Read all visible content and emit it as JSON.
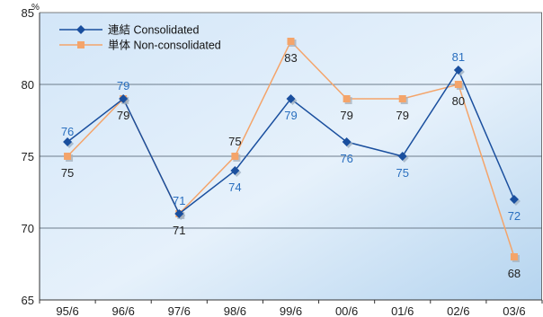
{
  "chart_data": {
    "type": "line",
    "unit": "%",
    "categories": [
      "95/6",
      "96/6",
      "97/6",
      "98/6",
      "99/6",
      "00/6",
      "01/6",
      "02/6",
      "03/6"
    ],
    "ylim": [
      65,
      85
    ],
    "yticks": [
      "65",
      "70",
      "75",
      "80",
      "85"
    ],
    "grid": true,
    "legend_position": "top-left",
    "series": [
      {
        "name": "連結  Consolidated",
        "marker": "diamond",
        "color": "#1a4f9e",
        "label_color": "#2a6fbf",
        "values": [
          76,
          79,
          71,
          74,
          79,
          76,
          75,
          81,
          72
        ],
        "labels": [
          "76",
          "79",
          "71",
          "74",
          "79",
          "76",
          "75",
          "81",
          "72"
        ]
      },
      {
        "name": "単体  Non-consolidated",
        "marker": "square",
        "color": "#f4a46a",
        "label_color": "#222222",
        "values": [
          75,
          79,
          71,
          75,
          83,
          79,
          79,
          80,
          68
        ],
        "labels": [
          "75",
          "79",
          "71",
          "75",
          "83",
          "79",
          "79",
          "80",
          "68"
        ]
      }
    ]
  }
}
